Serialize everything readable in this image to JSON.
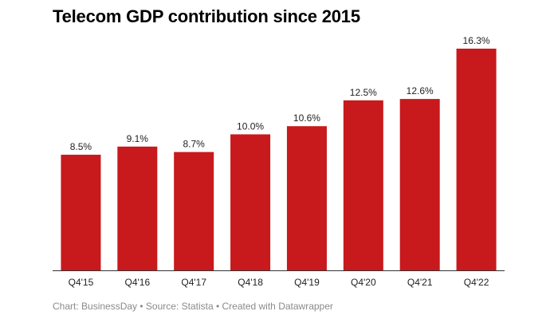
{
  "chart_data": {
    "type": "bar",
    "title": "Telecom GDP contribution since 2015",
    "categories": [
      "Q4'15",
      "Q4'16",
      "Q4'17",
      "Q4'18",
      "Q4'19",
      "Q4'20",
      "Q4'21",
      "Q4'22"
    ],
    "values": [
      8.5,
      9.1,
      8.7,
      10.0,
      10.6,
      12.5,
      12.6,
      16.3
    ],
    "value_labels": [
      "8.5%",
      "9.1%",
      "8.7%",
      "10.0%",
      "10.6%",
      "12.5%",
      "12.6%",
      "16.3%"
    ],
    "unit": "%",
    "xlabel": "",
    "ylabel": "",
    "ylim": [
      0,
      16.3
    ],
    "grid": false,
    "bar_color": "#c8191c",
    "footer": "Chart: BusinessDay • Source: Statista • Created with Datawrapper"
  }
}
